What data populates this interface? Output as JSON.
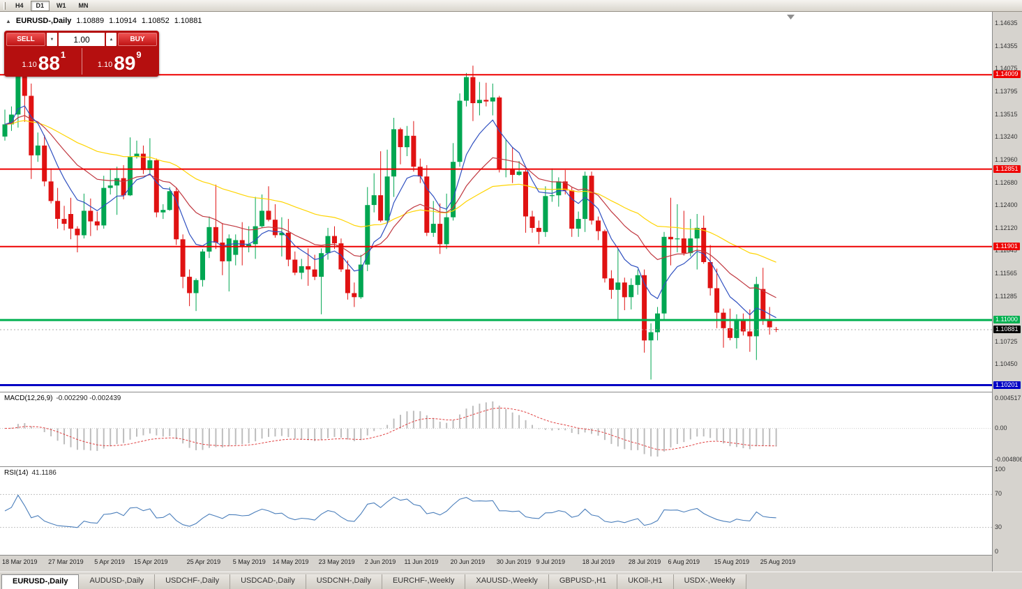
{
  "toolbar": {
    "periods": [
      {
        "label": "H4",
        "active": false
      },
      {
        "label": "D1",
        "active": true
      },
      {
        "label": "W1",
        "active": false
      },
      {
        "label": "MN",
        "active": false
      }
    ]
  },
  "chart_header": {
    "collapse_symbol": "▲",
    "symbol_title": "EURUSD-,Daily",
    "open": "1.10889",
    "high": "1.10914",
    "low": "1.10852",
    "close": "1.10881"
  },
  "trade_panel": {
    "sell_label": "SELL",
    "buy_label": "BUY",
    "volume": "1.00",
    "volume_decrease_symbol": "▼",
    "volume_increase_symbol": "▲",
    "sell_price_prefix": "1.10",
    "sell_price_big": "88",
    "sell_price_sup": "1",
    "buy_price_prefix": "1.10",
    "buy_price_big": "89",
    "buy_price_sup": "9"
  },
  "chart_data": {
    "type": "candlestick",
    "symbol": "EURUSD-",
    "timeframe": "Daily",
    "title": "EURUSD-,Daily",
    "candle_colors": {
      "up": "#00a651",
      "down": "#e01212"
    },
    "price_range": {
      "min": 1.1012,
      "max": 1.1478
    },
    "ohlc": [
      [
        1.1325,
        1.1358,
        1.132,
        1.134
      ],
      [
        1.134,
        1.1362,
        1.1332,
        1.1352
      ],
      [
        1.1352,
        1.1438,
        1.1336,
        1.1416
      ],
      [
        1.1416,
        1.142,
        1.1343,
        1.1375
      ],
      [
        1.1375,
        1.139,
        1.1273,
        1.1302
      ],
      [
        1.1302,
        1.133,
        1.1294,
        1.1314
      ],
      [
        1.1314,
        1.1327,
        1.1264,
        1.127
      ],
      [
        1.127,
        1.1286,
        1.1243,
        1.1246
      ],
      [
        1.1246,
        1.1262,
        1.1212,
        1.1224
      ],
      [
        1.1224,
        1.124,
        1.121,
        1.1218
      ],
      [
        1.123,
        1.125,
        1.1199,
        1.1212
      ],
      [
        1.1212,
        1.1215,
        1.1183,
        1.1204
      ],
      [
        1.1204,
        1.1255,
        1.12,
        1.1234
      ],
      [
        1.1234,
        1.1249,
        1.1203,
        1.1221
      ],
      [
        1.1221,
        1.1233,
        1.121,
        1.1216
      ],
      [
        1.1216,
        1.1277,
        1.1212,
        1.1262
      ],
      [
        1.1262,
        1.1285,
        1.1254,
        1.1265
      ],
      [
        1.1265,
        1.1288,
        1.1229,
        1.1274
      ],
      [
        1.1274,
        1.129,
        1.1248,
        1.1253
      ],
      [
        1.1253,
        1.1324,
        1.1252,
        1.13
      ],
      [
        1.13,
        1.132,
        1.1298,
        1.1304
      ],
      [
        1.1304,
        1.1314,
        1.1279,
        1.1284
      ],
      [
        1.1284,
        1.1323,
        1.128,
        1.1296
      ],
      [
        1.1296,
        1.1298,
        1.1226,
        1.1232
      ],
      [
        1.1232,
        1.1242,
        1.1224,
        1.1235
      ],
      [
        1.1235,
        1.1263,
        1.1234,
        1.1258
      ],
      [
        1.1258,
        1.1262,
        1.1192,
        1.1199
      ],
      [
        1.1199,
        1.1205,
        1.1139,
        1.1153
      ],
      [
        1.1153,
        1.1162,
        1.1117,
        1.1133
      ],
      [
        1.1133,
        1.1151,
        1.1111,
        1.1149
      ],
      [
        1.1149,
        1.1187,
        1.1141,
        1.1184
      ],
      [
        1.1184,
        1.1227,
        1.1176,
        1.1214
      ],
      [
        1.1214,
        1.1266,
        1.1187,
        1.1195
      ],
      [
        1.1195,
        1.1219,
        1.1155,
        1.1172
      ],
      [
        1.1172,
        1.1205,
        1.1135,
        1.12
      ],
      [
        1.118,
        1.1205,
        1.1167,
        1.1198
      ],
      [
        1.1198,
        1.122,
        1.1167,
        1.119
      ],
      [
        1.119,
        1.1215,
        1.1183,
        1.1193
      ],
      [
        1.1193,
        1.1251,
        1.1175,
        1.1215
      ],
      [
        1.1215,
        1.1254,
        1.1213,
        1.1234
      ],
      [
        1.1234,
        1.1264,
        1.1221,
        1.1223
      ],
      [
        1.1223,
        1.1242,
        1.1201,
        1.1204
      ],
      [
        1.1204,
        1.1226,
        1.1178,
        1.1207
      ],
      [
        1.1207,
        1.1224,
        1.1166,
        1.1174
      ],
      [
        1.1174,
        1.1184,
        1.1155,
        1.1158
      ],
      [
        1.1158,
        1.1175,
        1.115,
        1.1166
      ],
      [
        1.1166,
        1.1188,
        1.1142,
        1.1162
      ],
      [
        1.1162,
        1.118,
        1.1149,
        1.1153
      ],
      [
        1.1153,
        1.1188,
        1.1107,
        1.1182
      ],
      [
        1.1182,
        1.1213,
        1.1174,
        1.1203
      ],
      [
        1.1203,
        1.1215,
        1.1187,
        1.1194
      ],
      [
        1.1194,
        1.12,
        1.1159,
        1.1162
      ],
      [
        1.1162,
        1.1173,
        1.1125,
        1.1133
      ],
      [
        1.1133,
        1.1146,
        1.1116,
        1.1128
      ],
      [
        1.1128,
        1.118,
        1.1126,
        1.1168
      ],
      [
        1.1168,
        1.1263,
        1.116,
        1.1241
      ],
      [
        1.1241,
        1.128,
        1.1232,
        1.1253
      ],
      [
        1.1253,
        1.1307,
        1.122,
        1.1222
      ],
      [
        1.1222,
        1.1309,
        1.1219,
        1.1276
      ],
      [
        1.1276,
        1.1348,
        1.1251,
        1.1334
      ],
      [
        1.1334,
        1.1336,
        1.1291,
        1.1312
      ],
      [
        1.1312,
        1.1338,
        1.1301,
        1.1326
      ],
      [
        1.1326,
        1.1344,
        1.1282,
        1.1288
      ],
      [
        1.1288,
        1.1298,
        1.1268,
        1.1276
      ],
      [
        1.1276,
        1.129,
        1.1203,
        1.1207
      ],
      [
        1.1207,
        1.1246,
        1.1202,
        1.1218
      ],
      [
        1.1218,
        1.1243,
        1.1181,
        1.1193
      ],
      [
        1.1193,
        1.1255,
        1.1187,
        1.1226
      ],
      [
        1.1226,
        1.1317,
        1.1222,
        1.1294
      ],
      [
        1.1294,
        1.1378,
        1.1288,
        1.1369
      ],
      [
        1.1369,
        1.1403,
        1.1362,
        1.1398
      ],
      [
        1.1398,
        1.1412,
        1.1344,
        1.1366
      ],
      [
        1.1366,
        1.1392,
        1.1351,
        1.137
      ],
      [
        1.137,
        1.1391,
        1.1362,
        1.1368
      ],
      [
        1.1368,
        1.139,
        1.1351,
        1.1373
      ],
      [
        1.1373,
        1.1375,
        1.1281,
        1.1285
      ],
      [
        1.1285,
        1.1322,
        1.1275,
        1.1285
      ],
      [
        1.1285,
        1.1312,
        1.1268,
        1.1278
      ],
      [
        1.1278,
        1.1295,
        1.1277,
        1.1282
      ],
      [
        1.1282,
        1.1286,
        1.1207,
        1.1227
      ],
      [
        1.1227,
        1.1234,
        1.1207,
        1.1213
      ],
      [
        1.1213,
        1.1222,
        1.1193,
        1.1208
      ],
      [
        1.1208,
        1.1264,
        1.1202,
        1.1252
      ],
      [
        1.1252,
        1.1286,
        1.1245,
        1.1253
      ],
      [
        1.1253,
        1.1275,
        1.1239,
        1.127
      ],
      [
        1.127,
        1.1284,
        1.1254,
        1.1259
      ],
      [
        1.1259,
        1.1263,
        1.1202,
        1.1212
      ],
      [
        1.1212,
        1.1233,
        1.1202,
        1.1224
      ],
      [
        1.1224,
        1.1282,
        1.1208,
        1.1277
      ],
      [
        1.1277,
        1.1282,
        1.1217,
        1.1222
      ],
      [
        1.1222,
        1.1227,
        1.1198,
        1.1209
      ],
      [
        1.1209,
        1.1211,
        1.1146,
        1.1151
      ],
      [
        1.1151,
        1.1161,
        1.1126,
        1.1137
      ],
      [
        1.1137,
        1.1187,
        1.1101,
        1.1146
      ],
      [
        1.1146,
        1.1152,
        1.1112,
        1.1128
      ],
      [
        1.1128,
        1.1151,
        1.1113,
        1.1143
      ],
      [
        1.1143,
        1.1162,
        1.1131,
        1.1155
      ],
      [
        1.1155,
        1.1162,
        1.106,
        1.1075
      ],
      [
        1.1075,
        1.1096,
        1.1027,
        1.1085
      ],
      [
        1.1085,
        1.1116,
        1.1075,
        1.1108
      ],
      [
        1.1108,
        1.1208,
        1.1101,
        1.1202
      ],
      [
        1.1202,
        1.125,
        1.1167,
        1.1199
      ],
      [
        1.1199,
        1.1242,
        1.1183,
        1.12
      ],
      [
        1.12,
        1.1234,
        1.1179,
        1.1182
      ],
      [
        1.1182,
        1.1224,
        1.1178,
        1.12
      ],
      [
        1.12,
        1.123,
        1.1162,
        1.1213
      ],
      [
        1.1213,
        1.1228,
        1.1169,
        1.1171
      ],
      [
        1.1171,
        1.1192,
        1.113,
        1.1139
      ],
      [
        1.1139,
        1.1163,
        1.109,
        1.1109
      ],
      [
        1.1109,
        1.1114,
        1.1066,
        1.109
      ],
      [
        1.109,
        1.1114,
        1.1075,
        1.1078
      ],
      [
        1.1078,
        1.1107,
        1.1065,
        1.1099
      ],
      [
        1.1099,
        1.1108,
        1.1081,
        1.1086
      ],
      [
        1.1086,
        1.1113,
        1.1061,
        1.108
      ],
      [
        1.108,
        1.1153,
        1.1051,
        1.1144
      ],
      [
        1.1138,
        1.1164,
        1.1094,
        1.1101
      ],
      [
        1.1101,
        1.1116,
        1.1082,
        1.1091
      ],
      [
        1.10889,
        1.10914,
        1.10852,
        1.10881
      ]
    ],
    "x_tick_labels": [
      {
        "label": "18 Mar 2019",
        "index": 0
      },
      {
        "label": "27 Mar 2019",
        "index": 7
      },
      {
        "label": "5 Apr 2019",
        "index": 14
      },
      {
        "label": "15 Apr 2019",
        "index": 20
      },
      {
        "label": "25 Apr 2019",
        "index": 28
      },
      {
        "label": "5 May 2019",
        "index": 35
      },
      {
        "label": "14 May 2019",
        "index": 41
      },
      {
        "label": "23 May 2019",
        "index": 48
      },
      {
        "label": "2 Jun 2019",
        "index": 55
      },
      {
        "label": "11 Jun 2019",
        "index": 61
      },
      {
        "label": "20 Jun 2019",
        "index": 68
      },
      {
        "label": "30 Jun 2019",
        "index": 75
      },
      {
        "label": "9 Jul 2019",
        "index": 81
      },
      {
        "label": "18 Jul 2019",
        "index": 88
      },
      {
        "label": "28 Jul 2019",
        "index": 95
      },
      {
        "label": "6 Aug 2019",
        "index": 101
      },
      {
        "label": "15 Aug 2019",
        "index": 108
      },
      {
        "label": "25 Aug 2019",
        "index": 115
      }
    ],
    "y_axis_ticks": [
      "1.14635",
      "1.14355",
      "1.14075",
      "1.13795",
      "1.13515",
      "1.13240",
      "1.12960",
      "1.12680",
      "1.12400",
      "1.12120",
      "1.11845",
      "1.11565",
      "1.11285",
      "1.10725",
      "1.10450"
    ],
    "horizontal_lines": [
      {
        "price": 1.14009,
        "label": "1.14009",
        "color": "#ee0000",
        "width": 2
      },
      {
        "price": 1.12851,
        "label": "1.12851",
        "color": "#ee0000",
        "width": 2
      },
      {
        "price": 1.11901,
        "label": "1.11901",
        "color": "#ee0000",
        "width": 2
      },
      {
        "price": 1.11,
        "label": "1.11000",
        "color": "#00b050",
        "width": 3
      },
      {
        "price": 1.10201,
        "label": "1.10201",
        "color": "#0000c4",
        "width": 3
      }
    ],
    "current_price": {
      "value": 1.10881,
      "label": "1.10881",
      "color": "#000000"
    },
    "moving_averages": [
      {
        "period": 50,
        "color": "#ffd400"
      },
      {
        "period": 20,
        "color": "#c03840"
      },
      {
        "period": 8,
        "color": "#2e4fc0"
      }
    ],
    "indicators": {
      "macd": {
        "name": "MACD(12,26,9)",
        "values": "-0.002290 -0.002439",
        "fast": 12,
        "slow": 26,
        "signal": 9,
        "axis_ticks": [
          {
            "label": "0.004517",
            "value": 0.004517
          },
          {
            "label": "0.00",
            "value": 0
          },
          {
            "label": "-0.004806",
            "value": -0.004806
          }
        ],
        "range": {
          "min": -0.00535,
          "max": 0.00505
        },
        "histogram_color": "#bdbdbd",
        "signal_color": "#e04040"
      },
      "rsi": {
        "name": "RSI(14)",
        "value": "41.1186",
        "period": 14,
        "axis_ticks": [
          {
            "label": "100",
            "value": 100
          },
          {
            "label": "70",
            "value": 70
          },
          {
            "label": "30",
            "value": 30
          },
          {
            "label": "0",
            "value": 0
          }
        ],
        "levels": [
          70,
          30
        ],
        "range": {
          "min": 0,
          "max": 100
        },
        "line_color": "#4a7ebb"
      }
    }
  },
  "tabs": [
    {
      "label": "EURUSD-,Daily",
      "active": true
    },
    {
      "label": "AUDUSD-,Daily",
      "active": false
    },
    {
      "label": "USDCHF-,Daily",
      "active": false
    },
    {
      "label": "USDCAD-,Daily",
      "active": false
    },
    {
      "label": "USDCNH-,Daily",
      "active": false
    },
    {
      "label": "EURCHF-,Weekly",
      "active": false
    },
    {
      "label": "XAUUSD-,Weekly",
      "active": false
    },
    {
      "label": "GBPUSD-,H1",
      "active": false
    },
    {
      "label": "UKOil-,H1",
      "active": false
    },
    {
      "label": "USDX-,Weekly",
      "active": false
    }
  ]
}
